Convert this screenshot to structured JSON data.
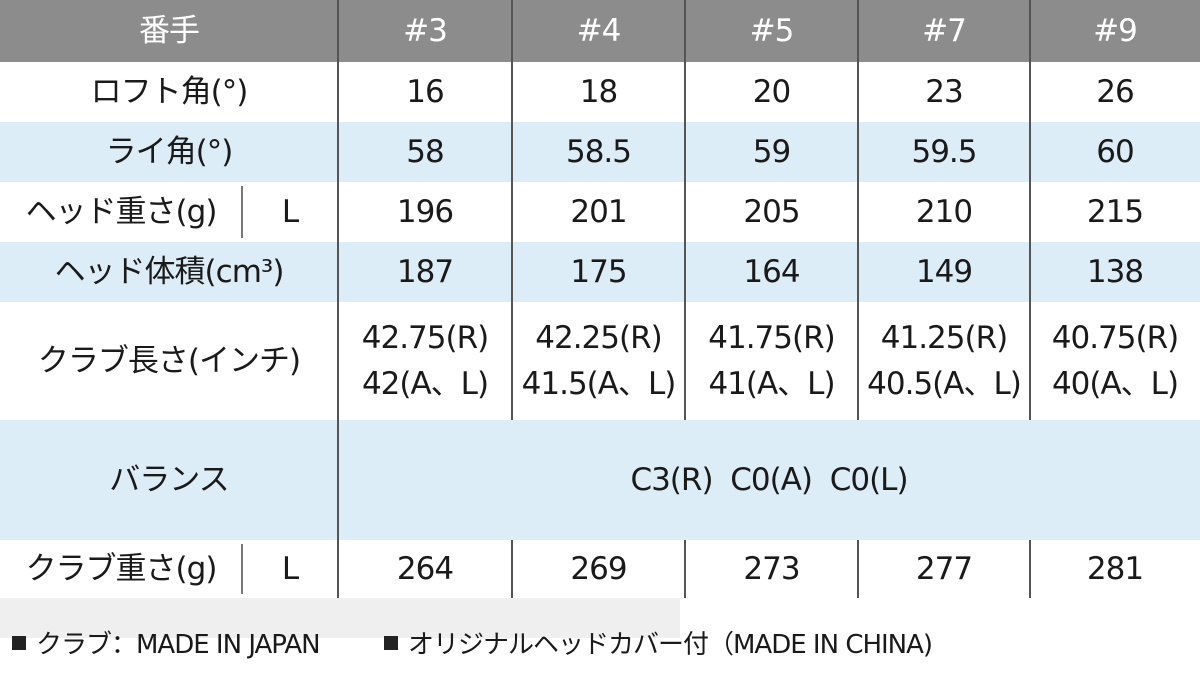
{
  "table": {
    "header": [
      "番手",
      "#3",
      "#4",
      "#5",
      "#7",
      "#9"
    ],
    "rows": [
      {
        "label": "ロフト角(°)",
        "values": [
          "16",
          "18",
          "20",
          "23",
          "26"
        ]
      },
      {
        "label": "ライ角(°)",
        "values": [
          "58",
          "58.5",
          "59",
          "59.5",
          "60"
        ]
      },
      {
        "label": "ヘッド重さ(g)",
        "sub": "L",
        "values": [
          "196",
          "201",
          "205",
          "210",
          "215"
        ]
      },
      {
        "label": "ヘッド体積(cm³)",
        "values": [
          "187",
          "175",
          "164",
          "149",
          "138"
        ]
      },
      {
        "label": "クラブ長さ(インチ)",
        "values": [
          [
            "42.75(R)",
            "42(A、L)"
          ],
          [
            "42.25(R)",
            "41.5(A、L)"
          ],
          [
            "41.75(R)",
            "41(A、L)"
          ],
          [
            "41.25(R)",
            "40.5(A、L)"
          ],
          [
            "40.75(R)",
            "40(A、L)"
          ]
        ]
      },
      {
        "label": "バランス",
        "span": "C3(R)  C0(A)  C0(L)"
      },
      {
        "label": "クラブ重さ(g)",
        "sub": "L",
        "values": [
          "264",
          "269",
          "273",
          "277",
          "281"
        ]
      }
    ]
  },
  "footer": [
    "クラブ：MADE IN JAPAN",
    "オリジナルヘッドカバー付（MADE IN CHINA)"
  ]
}
